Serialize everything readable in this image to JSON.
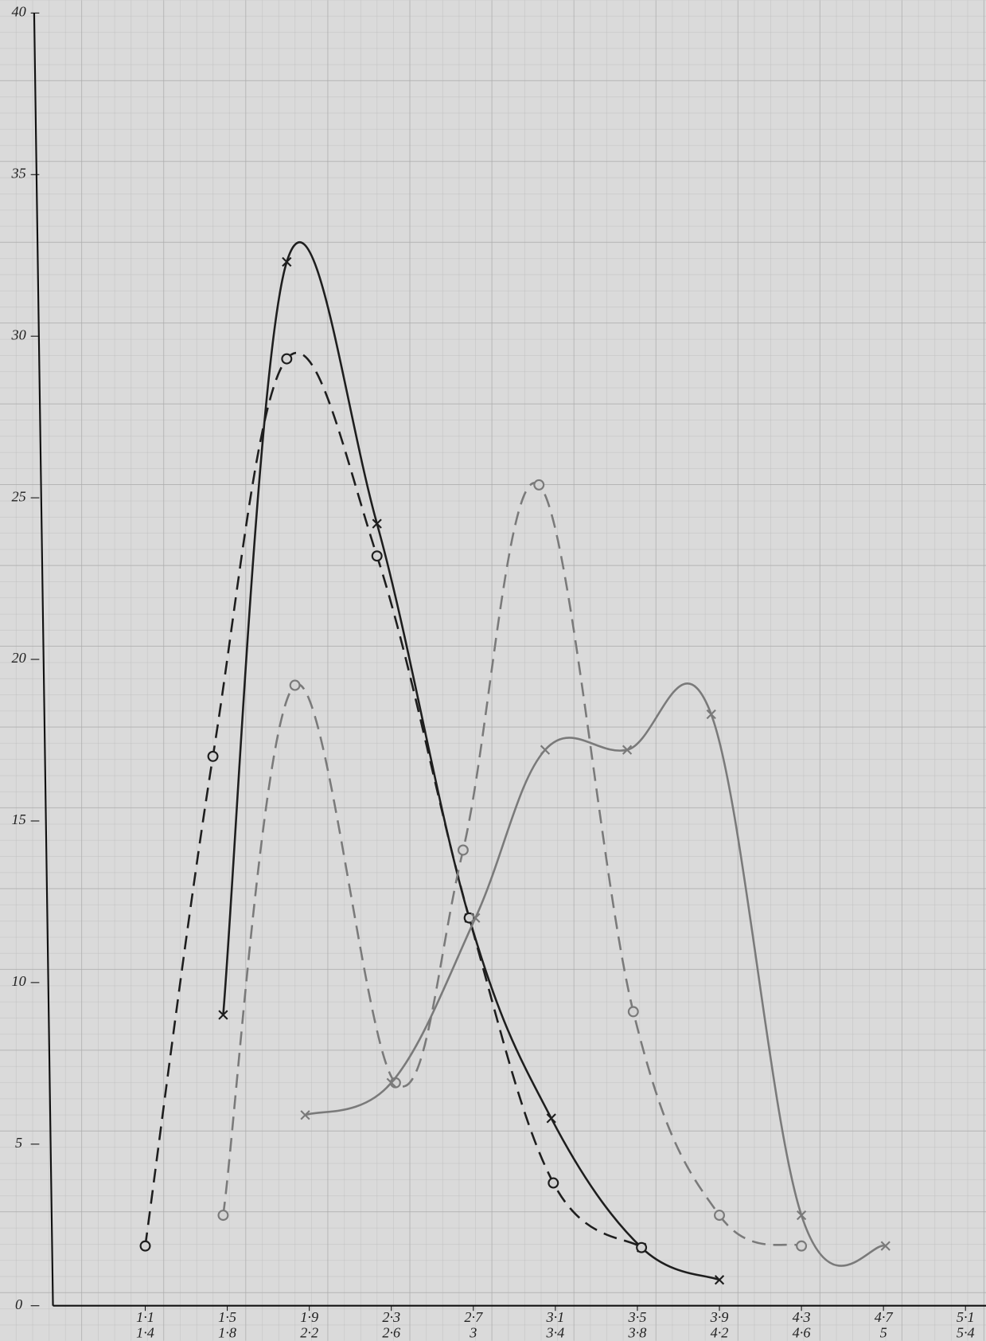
{
  "chart_data": {
    "type": "line",
    "xlim": [
      0.65,
      5.2
    ],
    "ylim": [
      0,
      40
    ],
    "yticks": [
      0,
      5,
      10,
      15,
      20,
      25,
      30,
      35,
      40
    ],
    "xticks": [
      {
        "value": 1.1,
        "label": "1·1"
      },
      {
        "value": 1.5,
        "label": "1·5"
      },
      {
        "value": 1.9,
        "label": "1·9"
      },
      {
        "value": 2.3,
        "label": "2·3"
      },
      {
        "value": 2.7,
        "label": "2·7"
      },
      {
        "value": 3.1,
        "label": "3·1"
      },
      {
        "value": 3.5,
        "label": "3·5"
      },
      {
        "value": 3.9,
        "label": "3·9"
      },
      {
        "value": 4.3,
        "label": "4·3"
      },
      {
        "value": 4.7,
        "label": "4·7"
      },
      {
        "value": 5.1,
        "label": "5·1"
      }
    ],
    "xtick_sublabels": [
      "1·4",
      "1·8",
      "2·2",
      "2·6",
      "3",
      "3·4",
      "3·8",
      "4·2",
      "4·6",
      "5",
      "5·4"
    ],
    "grid": true,
    "series": [
      {
        "color": "#1e1e1e",
        "dashed": false,
        "marker": "x",
        "x": [
          1.48,
          1.79,
          2.23,
          2.68,
          3.08,
          3.52,
          3.9
        ],
        "values": [
          9,
          32.3,
          24.2,
          12,
          5.8,
          1.8,
          0.8
        ]
      },
      {
        "color": "#1e1e1e",
        "dashed": true,
        "marker": "o",
        "x": [
          1.1,
          1.43,
          1.79,
          2.23,
          2.68,
          3.09,
          3.52
        ],
        "values": [
          1.85,
          17,
          29.3,
          23.2,
          12,
          3.8,
          1.8
        ]
      },
      {
        "color": "#7a7a7a",
        "dashed": true,
        "marker": "o",
        "x": [
          1.48,
          1.83,
          2.32,
          2.65,
          3.02,
          3.48,
          3.9,
          4.3
        ],
        "values": [
          2.8,
          19.2,
          6.9,
          14.1,
          25.4,
          9.1,
          2.8,
          1.85
        ]
      },
      {
        "color": "#7a7a7a",
        "dashed": false,
        "marker": "x",
        "x": [
          1.88,
          2.3,
          2.71,
          3.05,
          3.45,
          3.86,
          4.3,
          4.71
        ],
        "values": [
          5.9,
          6.9,
          12,
          17.2,
          17.2,
          18.3,
          2.8,
          1.85
        ]
      }
    ]
  }
}
